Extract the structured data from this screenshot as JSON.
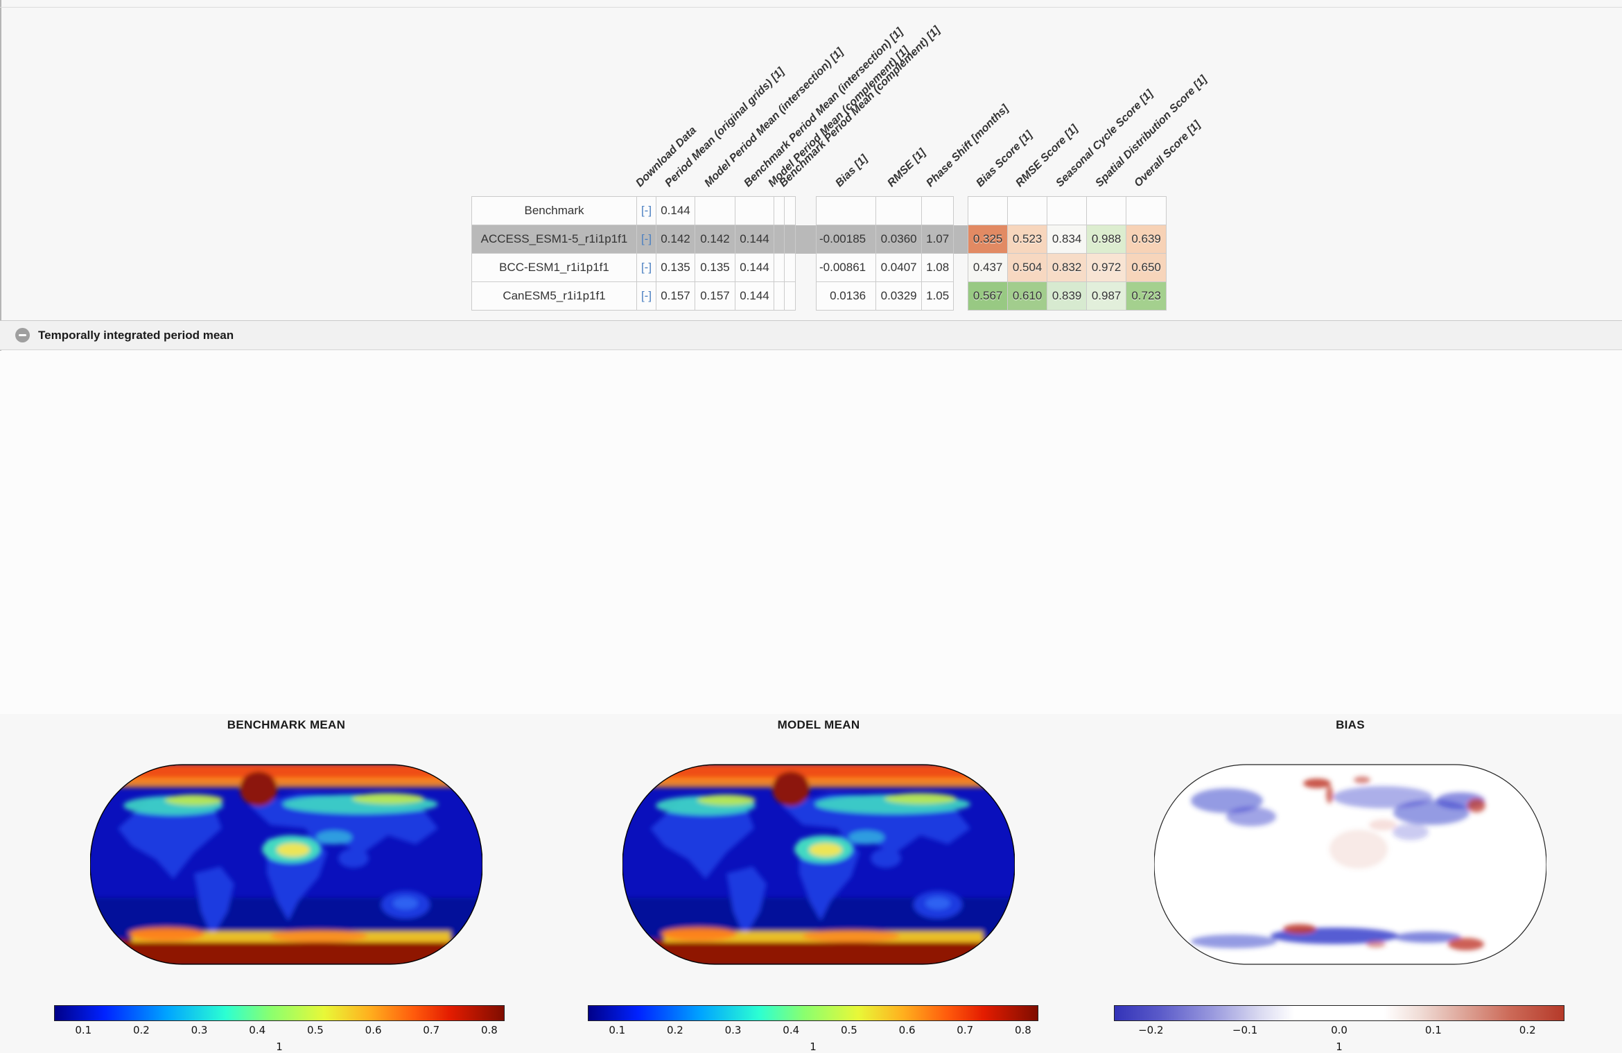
{
  "section": {
    "title": "Temporally integrated period mean"
  },
  "table": {
    "headers": [
      "Download Data",
      "Period Mean (original grids) [1]",
      "Model Period Mean (intersection) [1]",
      "Benchmark Period Mean (intersection) [1]",
      "Model Period Mean (complement) [1]",
      "Benchmark Period Mean (complement) [1]",
      "Bias [1]",
      "RMSE [1]",
      "Phase Shift [months]",
      "Bias Score [1]",
      "RMSE Score [1]",
      "Seasonal Cycle Score [1]",
      "Spatial Distribution Score [1]",
      "Overall Score [1]"
    ],
    "download_label": "[-]",
    "highlight_color": "#b9b9b9",
    "rows": [
      {
        "label": "Benchmark",
        "highlighted": false,
        "cells": [
          "0.144",
          "",
          "",
          "",
          "",
          "",
          "",
          ""
        ],
        "scores": [
          "",
          "",
          "",
          "",
          ""
        ],
        "score_colors": [
          "#fcfcfc",
          "#fcfcfc",
          "#fcfcfc",
          "#fcfcfc",
          "#fcfcfc"
        ]
      },
      {
        "label": "ACCESS_ESM1-5_r1i1p1f1",
        "highlighted": true,
        "cells": [
          "0.142",
          "0.142",
          "0.144",
          "",
          "",
          "-0.00185",
          "0.0360",
          "1.07"
        ],
        "scores": [
          "0.325",
          "0.523",
          "0.834",
          "0.988",
          "0.639"
        ],
        "score_colors": [
          "#e28a63",
          "#f7d6bd",
          "#f7f7f4",
          "#dcedcf",
          "#f7d2b6"
        ]
      },
      {
        "label": "BCC-ESM1_r1i1p1f1",
        "highlighted": false,
        "cells": [
          "0.135",
          "0.135",
          "0.144",
          "",
          "",
          "-0.00861",
          "0.0407",
          "1.08"
        ],
        "scores": [
          "0.437",
          "0.504",
          "0.832",
          "0.972",
          "0.650"
        ],
        "score_colors": [
          "#f6f6f3",
          "#f7d8c1",
          "#f7dcc7",
          "#f8e4d3",
          "#f7d5bb"
        ]
      },
      {
        "label": "CanESM5_r1i1p1f1",
        "highlighted": false,
        "cells": [
          "0.157",
          "0.157",
          "0.144",
          "",
          "",
          "0.0136",
          "0.0329",
          "1.05"
        ],
        "scores": [
          "0.567",
          "0.610",
          "0.839",
          "0.987",
          "0.723"
        ],
        "score_colors": [
          "#98c983",
          "#a2cd8d",
          "#d7ead0",
          "#e2efdb",
          "#a4d08e"
        ]
      }
    ]
  },
  "panels": [
    {
      "title": "BENCHMARK MEAN",
      "colorbar": {
        "type": "jet",
        "ticks": [
          "0.1",
          "0.2",
          "0.3",
          "0.4",
          "0.5",
          "0.6",
          "0.7",
          "0.8"
        ],
        "unit": "1"
      }
    },
    {
      "title": "MODEL MEAN",
      "colorbar": {
        "type": "jet",
        "ticks": [
          "0.1",
          "0.2",
          "0.3",
          "0.4",
          "0.5",
          "0.6",
          "0.7",
          "0.8"
        ],
        "unit": "1"
      }
    },
    {
      "title": "BIAS",
      "colorbar": {
        "type": "bias",
        "ticks": [
          "−0.2",
          "−0.1",
          "0.0",
          "0.1",
          "0.2"
        ],
        "unit": "1"
      }
    }
  ],
  "chart_data": [
    {
      "type": "heatmap",
      "title": "BENCHMARK MEAN",
      "projection": "robinson",
      "colormap": "jet",
      "colorbar_ticks": [
        0.1,
        0.2,
        0.3,
        0.4,
        0.5,
        0.6,
        0.7,
        0.8
      ],
      "units": "1",
      "description": "Global map, dark blue oceans/low values, cyan-yellow tundra and deserts, red polar ice caps"
    },
    {
      "type": "heatmap",
      "title": "MODEL MEAN",
      "projection": "robinson",
      "colormap": "jet",
      "colorbar_ticks": [
        0.1,
        0.2,
        0.3,
        0.4,
        0.5,
        0.6,
        0.7,
        0.8
      ],
      "units": "1",
      "description": "Global map similar to benchmark mean"
    },
    {
      "type": "heatmap",
      "title": "BIAS",
      "projection": "robinson",
      "colormap": "blue-white-red",
      "colorbar_ticks": [
        -0.2,
        -0.1,
        0.0,
        0.1,
        0.2
      ],
      "units": "1",
      "description": "Mostly white with blue negative bias over northern high latitudes and southern ocean ice edge, scattered red positive bias near Greenland, NE Asia and Antarctic coast"
    }
  ]
}
